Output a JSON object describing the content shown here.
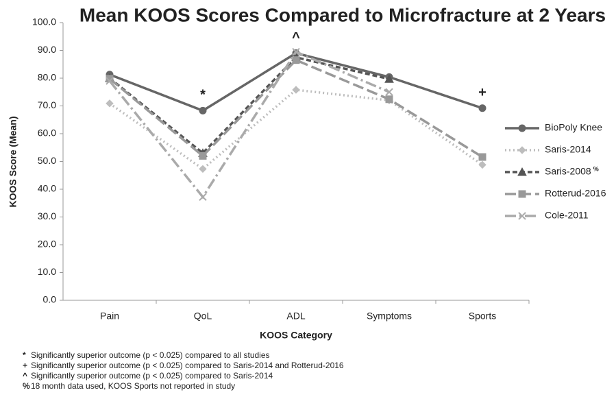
{
  "chart_data": {
    "type": "line",
    "title": "Mean KOOS Scores Compared to Microfracture at 2 Years",
    "x_label": "KOOS Category",
    "y_label": "KOOS Score (Mean)",
    "categories": [
      "Pain",
      "QoL",
      "ADL",
      "Symptoms",
      "Sports"
    ],
    "ylim": [
      0,
      100
    ],
    "yticks": [
      {
        "value": 0,
        "label": "0.0"
      },
      {
        "value": 10,
        "label": "10.0"
      },
      {
        "value": 20,
        "label": "20.0"
      },
      {
        "value": 30,
        "label": "30.0"
      },
      {
        "value": 40,
        "label": "40.0"
      },
      {
        "value": 50,
        "label": "50.0"
      },
      {
        "value": 60,
        "label": "60.0"
      },
      {
        "value": 70,
        "label": "70.0"
      },
      {
        "value": 80,
        "label": "80.0"
      },
      {
        "value": 90,
        "label": "90.0"
      },
      {
        "value": 100,
        "label": "100.0"
      }
    ],
    "legend": "right",
    "series": [
      {
        "name": "BioPoly Knee",
        "color": "#666666",
        "marker": "circle",
        "dash": "solid",
        "values": [
          81.3,
          68.3,
          89.0,
          80.4,
          69.2
        ]
      },
      {
        "name": "Saris-2014",
        "color": "#bdbdbd",
        "marker": "diamond",
        "dash": "dotted",
        "values": [
          70.9,
          47.3,
          75.8,
          72.0,
          48.8
        ]
      },
      {
        "name": "Saris-2008",
        "note": "%",
        "color": "#555555",
        "marker": "triangle",
        "dash": "dashed",
        "values": [
          80.0,
          53.0,
          87.5,
          79.7,
          null
        ]
      },
      {
        "name": "Rotterud-2016",
        "color": "#999999",
        "marker": "square",
        "dash": "longdash",
        "values": [
          79.8,
          52.0,
          86.5,
          72.4,
          51.6
        ]
      },
      {
        "name": "Cole-2011",
        "color": "#aaaaaa",
        "marker": "x",
        "dash": "dashdot",
        "values": [
          79.0,
          37.2,
          89.5,
          75.0,
          null
        ]
      }
    ],
    "annotations": [
      {
        "text": "*",
        "category": "QoL"
      },
      {
        "text": "^",
        "category": "ADL"
      },
      {
        "text": "+",
        "category": "Sports"
      }
    ],
    "footnotes": [
      {
        "symbol": "*",
        "text": "Significantly superior outcome (p < 0.025) compared to all studies"
      },
      {
        "symbol": "+",
        "text": "Significantly superior outcome (p < 0.025) compared to Saris-2014 and Rotterud-2016"
      },
      {
        "symbol": "^",
        "text": "Significantly superior outcome (p < 0.025) compared to Saris-2014"
      },
      {
        "symbol": "%",
        "text": "18 month data used, KOOS Sports not reported in study"
      }
    ]
  }
}
